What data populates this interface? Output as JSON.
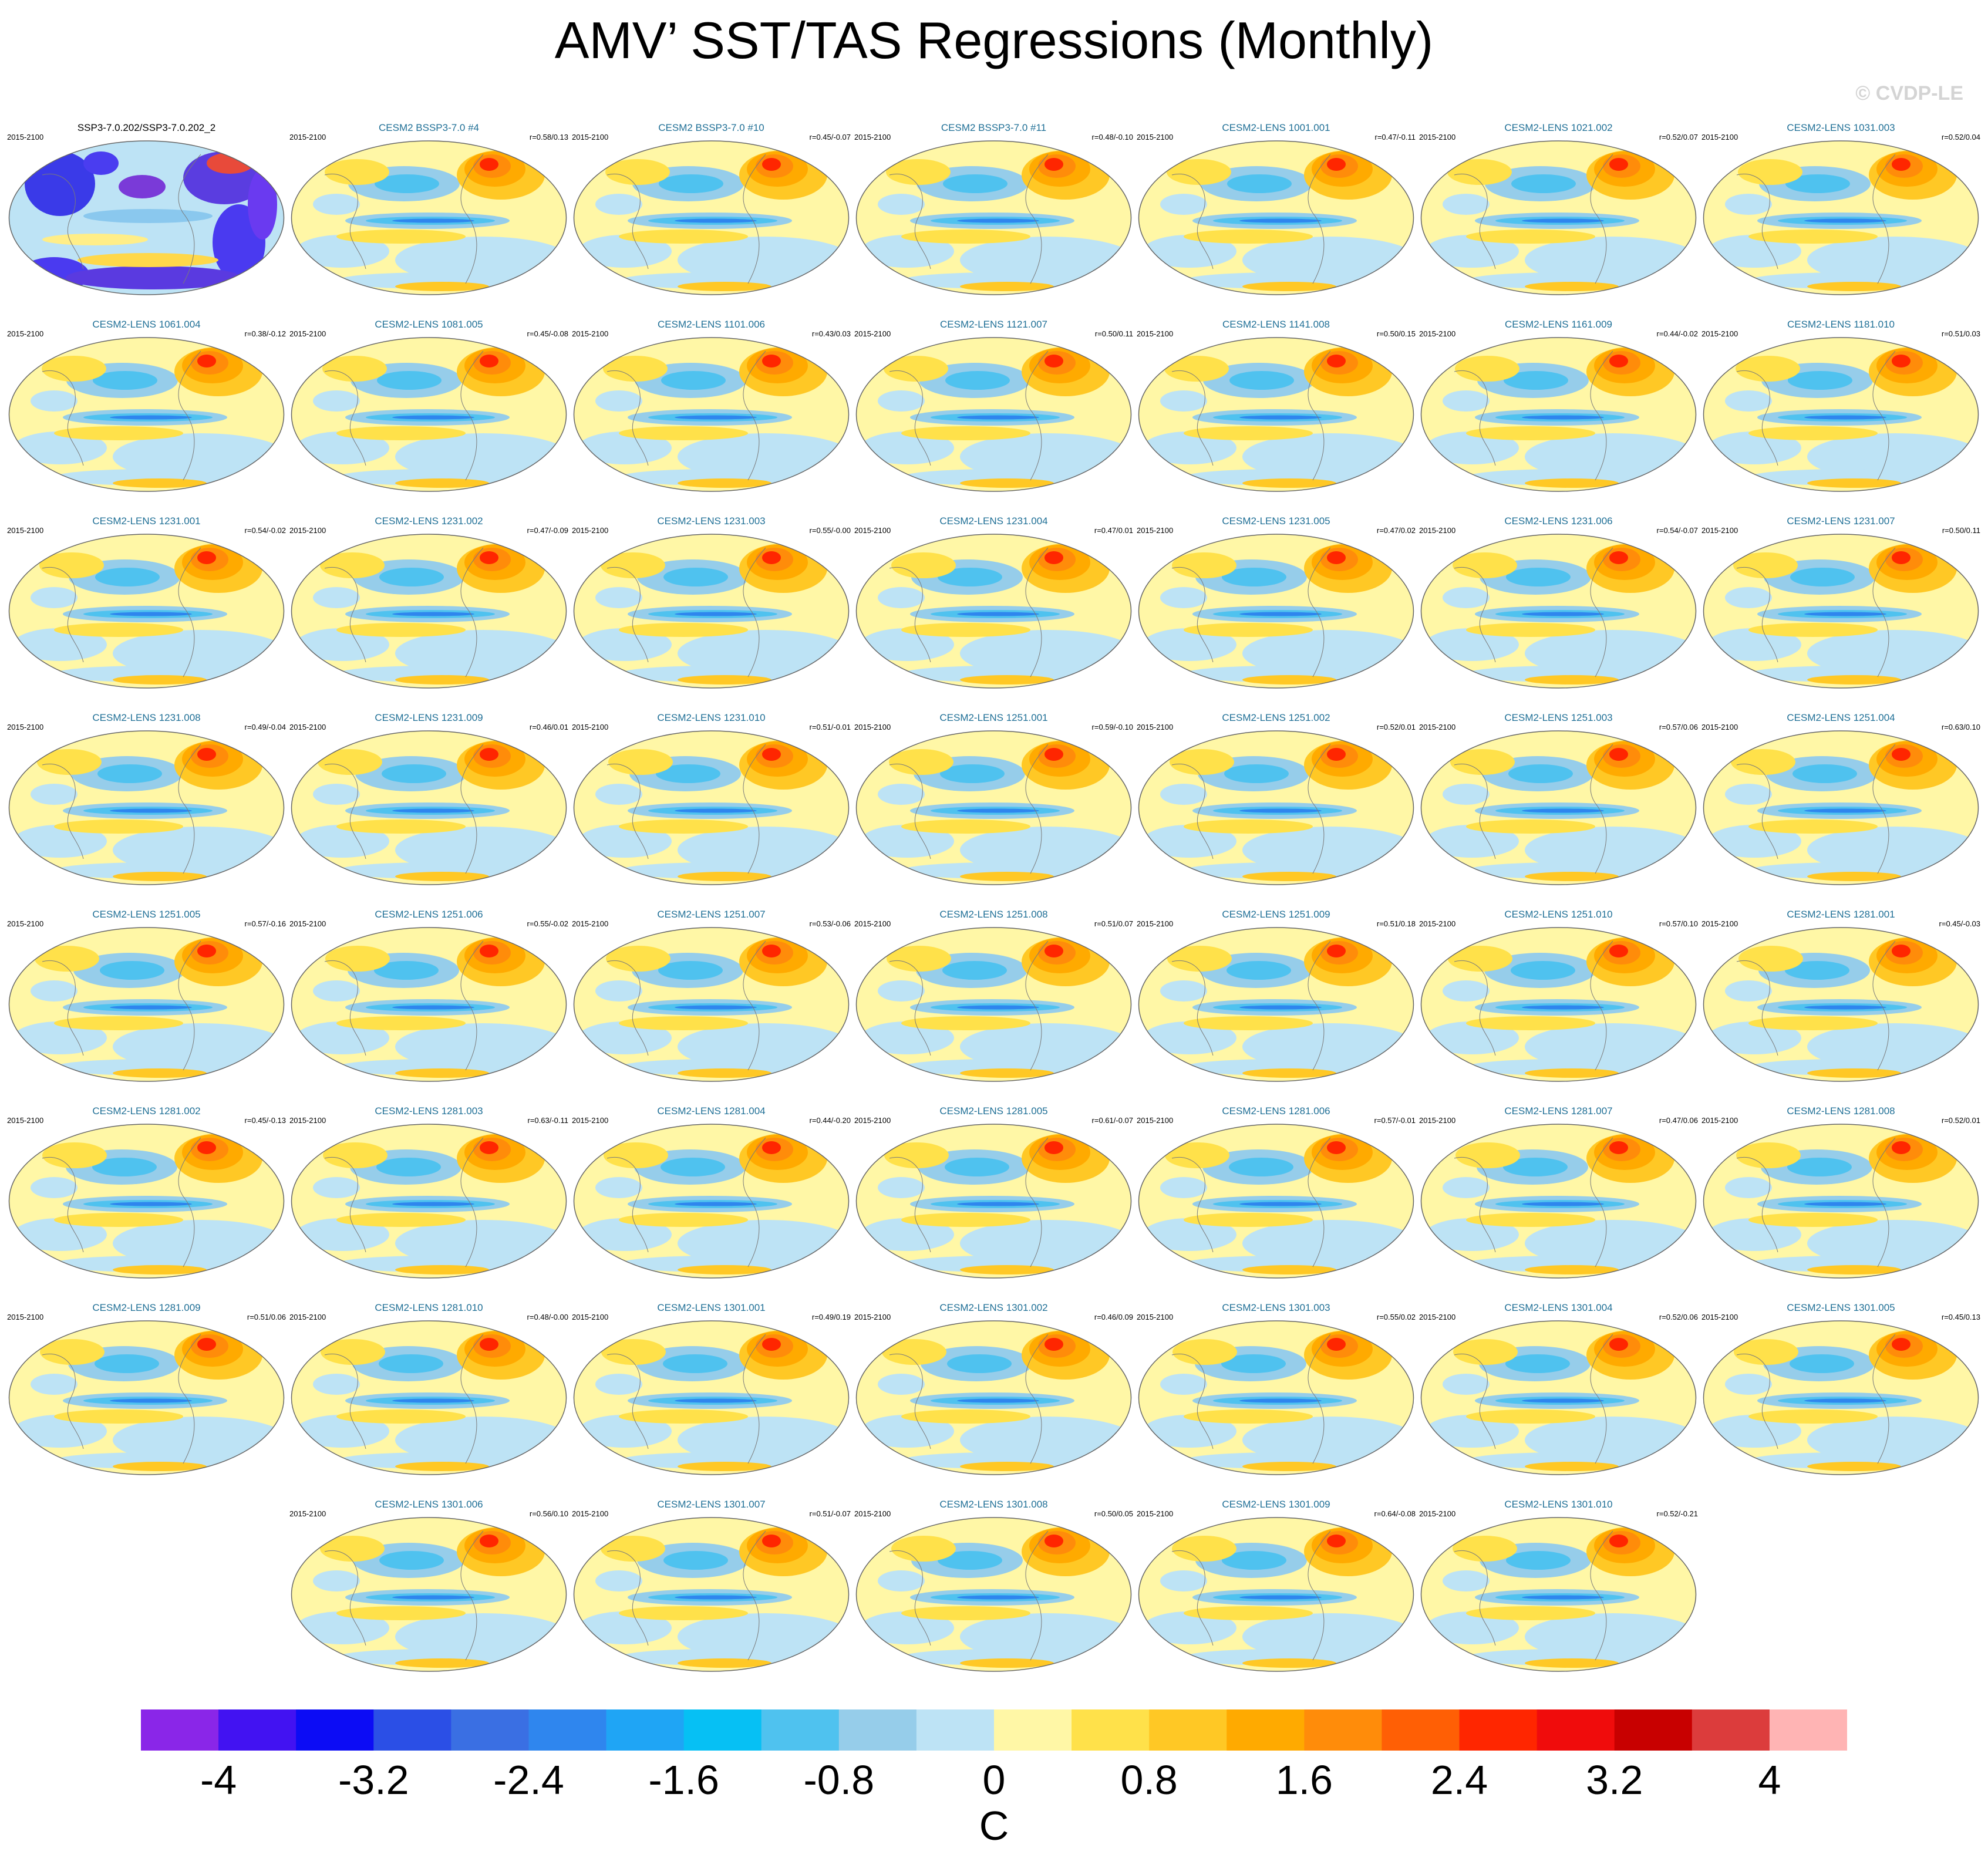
{
  "title": "AMV’ SST/TAS Regressions (Monthly)",
  "watermark": "© CVDP-LE",
  "chart_data": {
    "type": "heatmap",
    "panels": [
      {
        "title": "SSP3-7.0.202/SSP3-7.0.202_2",
        "period": "2015-2100",
        "r": ""
      },
      {
        "title": "CESM2 BSSP3-7.0 #4",
        "period": "2015-2100",
        "r": "r=0.58/0.13"
      },
      {
        "title": "CESM2 BSSP3-7.0 #10",
        "period": "2015-2100",
        "r": "r=0.45/-0.07"
      },
      {
        "title": "CESM2 BSSP3-7.0 #11",
        "period": "2015-2100",
        "r": "r=0.48/-0.10"
      },
      {
        "title": "CESM2-LENS 1001.001",
        "period": "2015-2100",
        "r": "r=0.47/-0.11"
      },
      {
        "title": "CESM2-LENS 1021.002",
        "period": "2015-2100",
        "r": "r=0.52/0.07"
      },
      {
        "title": "CESM2-LENS 1031.003",
        "period": "2015-2100",
        "r": "r=0.52/0.04"
      },
      {
        "title": "CESM2-LENS 1061.004",
        "period": "2015-2100",
        "r": "r=0.38/-0.12"
      },
      {
        "title": "CESM2-LENS 1081.005",
        "period": "2015-2100",
        "r": "r=0.45/-0.08"
      },
      {
        "title": "CESM2-LENS 1101.006",
        "period": "2015-2100",
        "r": "r=0.43/0.03"
      },
      {
        "title": "CESM2-LENS 1121.007",
        "period": "2015-2100",
        "r": "r=0.50/0.11"
      },
      {
        "title": "CESM2-LENS 1141.008",
        "period": "2015-2100",
        "r": "r=0.50/0.15"
      },
      {
        "title": "CESM2-LENS 1161.009",
        "period": "2015-2100",
        "r": "r=0.44/-0.02"
      },
      {
        "title": "CESM2-LENS 1181.010",
        "period": "2015-2100",
        "r": "r=0.51/0.03"
      },
      {
        "title": "CESM2-LENS 1231.001",
        "period": "2015-2100",
        "r": "r=0.54/-0.02"
      },
      {
        "title": "CESM2-LENS 1231.002",
        "period": "2015-2100",
        "r": "r=0.47/-0.09"
      },
      {
        "title": "CESM2-LENS 1231.003",
        "period": "2015-2100",
        "r": "r=0.55/-0.00"
      },
      {
        "title": "CESM2-LENS 1231.004",
        "period": "2015-2100",
        "r": "r=0.47/0.01"
      },
      {
        "title": "CESM2-LENS 1231.005",
        "period": "2015-2100",
        "r": "r=0.47/0.02"
      },
      {
        "title": "CESM2-LENS 1231.006",
        "period": "2015-2100",
        "r": "r=0.54/-0.07"
      },
      {
        "title": "CESM2-LENS 1231.007",
        "period": "2015-2100",
        "r": "r=0.50/0.11"
      },
      {
        "title": "CESM2-LENS 1231.008",
        "period": "2015-2100",
        "r": "r=0.49/-0.04"
      },
      {
        "title": "CESM2-LENS 1231.009",
        "period": "2015-2100",
        "r": "r=0.46/0.01"
      },
      {
        "title": "CESM2-LENS 1231.010",
        "period": "2015-2100",
        "r": "r=0.51/-0.01"
      },
      {
        "title": "CESM2-LENS 1251.001",
        "period": "2015-2100",
        "r": "r=0.59/-0.10"
      },
      {
        "title": "CESM2-LENS 1251.002",
        "period": "2015-2100",
        "r": "r=0.52/0.01"
      },
      {
        "title": "CESM2-LENS 1251.003",
        "period": "2015-2100",
        "r": "r=0.57/0.06"
      },
      {
        "title": "CESM2-LENS 1251.004",
        "period": "2015-2100",
        "r": "r=0.63/0.10"
      },
      {
        "title": "CESM2-LENS 1251.005",
        "period": "2015-2100",
        "r": "r=0.57/-0.16"
      },
      {
        "title": "CESM2-LENS 1251.006",
        "period": "2015-2100",
        "r": "r=0.55/-0.02"
      },
      {
        "title": "CESM2-LENS 1251.007",
        "period": "2015-2100",
        "r": "r=0.53/-0.06"
      },
      {
        "title": "CESM2-LENS 1251.008",
        "period": "2015-2100",
        "r": "r=0.51/0.07"
      },
      {
        "title": "CESM2-LENS 1251.009",
        "period": "2015-2100",
        "r": "r=0.51/0.18"
      },
      {
        "title": "CESM2-LENS 1251.010",
        "period": "2015-2100",
        "r": "r=0.57/0.10"
      },
      {
        "title": "CESM2-LENS 1281.001",
        "period": "2015-2100",
        "r": "r=0.45/-0.03"
      },
      {
        "title": "CESM2-LENS 1281.002",
        "period": "2015-2100",
        "r": "r=0.45/-0.13"
      },
      {
        "title": "CESM2-LENS 1281.003",
        "period": "2015-2100",
        "r": "r=0.63/-0.11"
      },
      {
        "title": "CESM2-LENS 1281.004",
        "period": "2015-2100",
        "r": "r=0.44/-0.20"
      },
      {
        "title": "CESM2-LENS 1281.005",
        "period": "2015-2100",
        "r": "r=0.61/-0.07"
      },
      {
        "title": "CESM2-LENS 1281.006",
        "period": "2015-2100",
        "r": "r=0.57/-0.01"
      },
      {
        "title": "CESM2-LENS 1281.007",
        "period": "2015-2100",
        "r": "r=0.47/0.06"
      },
      {
        "title": "CESM2-LENS 1281.008",
        "period": "2015-2100",
        "r": "r=0.52/0.01"
      },
      {
        "title": "CESM2-LENS 1281.009",
        "period": "2015-2100",
        "r": "r=0.51/0.06"
      },
      {
        "title": "CESM2-LENS 1281.010",
        "period": "2015-2100",
        "r": "r=0.48/-0.00"
      },
      {
        "title": "CESM2-LENS 1301.001",
        "period": "2015-2100",
        "r": "r=0.49/0.19"
      },
      {
        "title": "CESM2-LENS 1301.002",
        "period": "2015-2100",
        "r": "r=0.46/0.09"
      },
      {
        "title": "CESM2-LENS 1301.003",
        "period": "2015-2100",
        "r": "r=0.55/0.02"
      },
      {
        "title": "CESM2-LENS 1301.004",
        "period": "2015-2100",
        "r": "r=0.52/0.06"
      },
      {
        "title": "CESM2-LENS 1301.005",
        "period": "2015-2100",
        "r": "r=0.45/0.13"
      },
      {
        "title": "CESM2-LENS 1301.006",
        "period": "2015-2100",
        "r": "r=0.56/0.10"
      },
      {
        "title": "CESM2-LENS 1301.007",
        "period": "2015-2100",
        "r": "r=0.51/-0.07"
      },
      {
        "title": "CESM2-LENS 1301.008",
        "period": "2015-2100",
        "r": "r=0.50/0.05"
      },
      {
        "title": "CESM2-LENS 1301.009",
        "period": "2015-2100",
        "r": "r=0.64/-0.08"
      },
      {
        "title": "CESM2-LENS 1301.010",
        "period": "2015-2100",
        "r": "r=0.52/-0.21"
      }
    ],
    "colorbar": {
      "units": "C",
      "range": [
        -4.4,
        4.4
      ],
      "step": 0.4,
      "tick_labels": [
        "-4",
        "-3.2",
        "-2.4",
        "-1.6",
        "-0.8",
        "0",
        "0.8",
        "1.6",
        "2.4",
        "3.2",
        "4"
      ],
      "tick_values": [
        -4,
        -3.2,
        -2.4,
        -1.6,
        -0.8,
        0,
        0.8,
        1.6,
        2.4,
        3.2,
        4
      ],
      "colors": [
        "#8a26e8",
        "#4212f2",
        "#0c0cf5",
        "#2b4fe6",
        "#3a6fe3",
        "#2f86ee",
        "#1fa5f5",
        "#06c0f4",
        "#4fc2ef",
        "#96cdea",
        "#bde3f5",
        "#fff7a6",
        "#ffe14a",
        "#ffc825",
        "#ffaa00",
        "#ff8c0a",
        "#ff5f05",
        "#ff2600",
        "#f00c0c",
        "#c80000",
        "#dc3c3c",
        "#ffb4b4"
      ]
    }
  }
}
